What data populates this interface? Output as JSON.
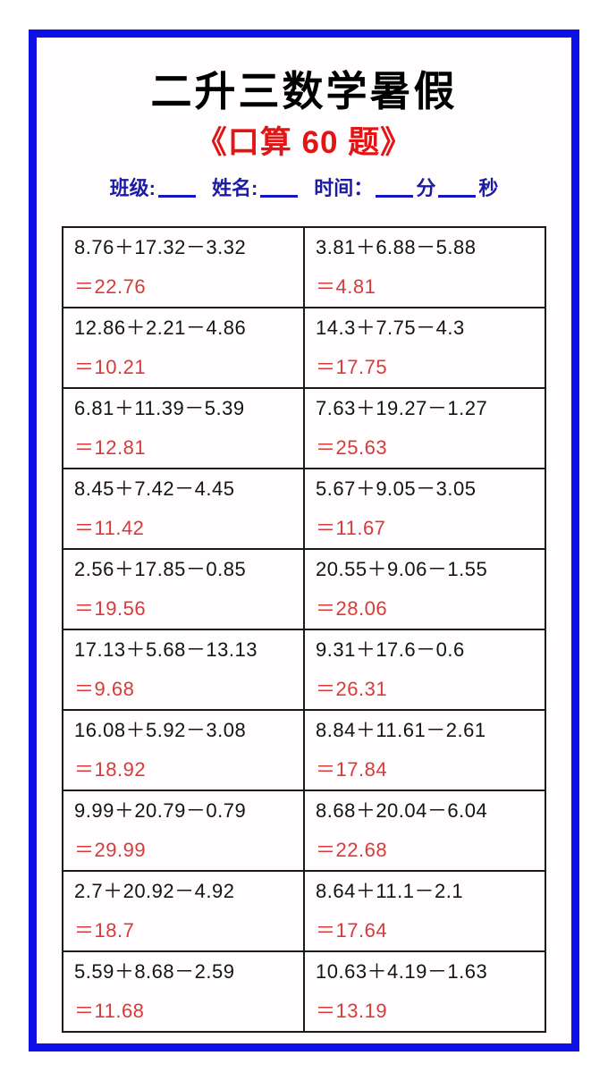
{
  "header": {
    "title": "二升三数学暑假",
    "subtitle": "《口算 60 题》"
  },
  "info": {
    "class_label": "班级:",
    "name_label": "姓名:",
    "time_label": "时间：",
    "minutes_label": "分",
    "seconds_label": "秒"
  },
  "colors": {
    "frame_blue": "#0f10e6",
    "subtitle_red": "#e41414",
    "info_blue": "#1b1ba5",
    "answer_red": "#d83a3a",
    "problem_black": "#141414",
    "table_border": "#1a1a1a"
  },
  "problems": [
    {
      "left": {
        "expression": "8.76＋17.32－3.32",
        "answer": "＝22.76"
      },
      "right": {
        "expression": "3.81＋6.88－5.88",
        "answer": "＝4.81"
      }
    },
    {
      "left": {
        "expression": "12.86＋2.21－4.86",
        "answer": "＝10.21"
      },
      "right": {
        "expression": "14.3＋7.75－4.3",
        "answer": "＝17.75"
      }
    },
    {
      "left": {
        "expression": "6.81＋11.39－5.39",
        "answer": "＝12.81"
      },
      "right": {
        "expression": "7.63＋19.27－1.27",
        "answer": "＝25.63"
      }
    },
    {
      "left": {
        "expression": "8.45＋7.42－4.45",
        "answer": "＝11.42"
      },
      "right": {
        "expression": "5.67＋9.05－3.05",
        "answer": "＝11.67"
      }
    },
    {
      "left": {
        "expression": "2.56＋17.85－0.85",
        "answer": "＝19.56"
      },
      "right": {
        "expression": "20.55＋9.06－1.55",
        "answer": "＝28.06"
      }
    },
    {
      "left": {
        "expression": "17.13＋5.68－13.13",
        "answer": "＝9.68"
      },
      "right": {
        "expression": "9.31＋17.6－0.6",
        "answer": "＝26.31"
      }
    },
    {
      "left": {
        "expression": "16.08＋5.92－3.08",
        "answer": "＝18.92"
      },
      "right": {
        "expression": "8.84＋11.61－2.61",
        "answer": "＝17.84"
      }
    },
    {
      "left": {
        "expression": "9.99＋20.79－0.79",
        "answer": "＝29.99"
      },
      "right": {
        "expression": "8.68＋20.04－6.04",
        "answer": "＝22.68"
      }
    },
    {
      "left": {
        "expression": "2.7＋20.92－4.92",
        "answer": "＝18.7"
      },
      "right": {
        "expression": "8.64＋11.1－2.1",
        "answer": "＝17.64"
      }
    },
    {
      "left": {
        "expression": "5.59＋8.68－2.59",
        "answer": "＝11.68"
      },
      "right": {
        "expression": "10.63＋4.19－1.63",
        "answer": "＝13.19"
      }
    }
  ]
}
